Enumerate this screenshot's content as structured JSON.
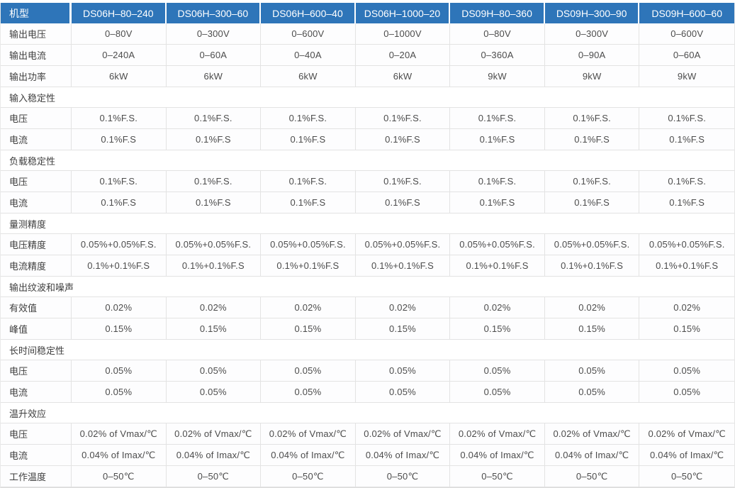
{
  "table": {
    "corner_label": "机型",
    "models": [
      "DS06H–80–240",
      "DS06H–300–60",
      "DS06H–600–40",
      "DS06H–1000–20",
      "DS09H–80–360",
      "DS09H–300–90",
      "DS09H–600–60"
    ],
    "rows": [
      {
        "type": "data",
        "label": "输出电压",
        "values": [
          "0–80V",
          "0–300V",
          "0–600V",
          "0–1000V",
          "0–80V",
          "0–300V",
          "0–600V"
        ]
      },
      {
        "type": "data",
        "label": "输出电流",
        "values": [
          "0–240A",
          "0–60A",
          "0–40A",
          "0–20A",
          "0–360A",
          "0–90A",
          "0–60A"
        ]
      },
      {
        "type": "data",
        "label": "输出功率",
        "values": [
          "6kW",
          "6kW",
          "6kW",
          "6kW",
          "9kW",
          "9kW",
          "9kW"
        ]
      },
      {
        "type": "section",
        "label": "输入稳定性"
      },
      {
        "type": "data",
        "label": "电压",
        "values": [
          "0.1%F.S.",
          "0.1%F.S.",
          "0.1%F.S.",
          "0.1%F.S.",
          "0.1%F.S.",
          "0.1%F.S.",
          "0.1%F.S."
        ]
      },
      {
        "type": "data",
        "label": "电流",
        "values": [
          "0.1%F.S",
          "0.1%F.S",
          "0.1%F.S",
          "0.1%F.S",
          "0.1%F.S",
          "0.1%F.S",
          "0.1%F.S"
        ]
      },
      {
        "type": "section",
        "label": "负载稳定性"
      },
      {
        "type": "data",
        "label": "电压",
        "values": [
          "0.1%F.S.",
          "0.1%F.S.",
          "0.1%F.S.",
          "0.1%F.S.",
          "0.1%F.S.",
          "0.1%F.S.",
          "0.1%F.S."
        ]
      },
      {
        "type": "data",
        "label": "电流",
        "values": [
          "0.1%F.S",
          "0.1%F.S",
          "0.1%F.S",
          "0.1%F.S",
          "0.1%F.S",
          "0.1%F.S",
          "0.1%F.S"
        ]
      },
      {
        "type": "section",
        "label": "量测精度"
      },
      {
        "type": "data",
        "label": "电压精度",
        "values": [
          "0.05%+0.05%F.S.",
          "0.05%+0.05%F.S.",
          "0.05%+0.05%F.S.",
          "0.05%+0.05%F.S.",
          "0.05%+0.05%F.S.",
          "0.05%+0.05%F.S.",
          "0.05%+0.05%F.S."
        ]
      },
      {
        "type": "data",
        "label": "电流精度",
        "values": [
          "0.1%+0.1%F.S",
          "0.1%+0.1%F.S",
          "0.1%+0.1%F.S",
          "0.1%+0.1%F.S",
          "0.1%+0.1%F.S",
          "0.1%+0.1%F.S",
          "0.1%+0.1%F.S"
        ]
      },
      {
        "type": "section",
        "label": "输出纹波和噪声"
      },
      {
        "type": "data",
        "label": "有效值",
        "values": [
          "0.02%",
          "0.02%",
          "0.02%",
          "0.02%",
          "0.02%",
          "0.02%",
          "0.02%"
        ]
      },
      {
        "type": "data",
        "label": "峰值",
        "values": [
          "0.15%",
          "0.15%",
          "0.15%",
          "0.15%",
          "0.15%",
          "0.15%",
          "0.15%"
        ]
      },
      {
        "type": "section",
        "label": "长时间稳定性"
      },
      {
        "type": "data",
        "label": "电压",
        "values": [
          "0.05%",
          "0.05%",
          "0.05%",
          "0.05%",
          "0.05%",
          "0.05%",
          "0.05%"
        ]
      },
      {
        "type": "data",
        "label": "电流",
        "values": [
          "0.05%",
          "0.05%",
          "0.05%",
          "0.05%",
          "0.05%",
          "0.05%",
          "0.05%"
        ]
      },
      {
        "type": "section",
        "label": "温升效应"
      },
      {
        "type": "data",
        "label": "电压",
        "values": [
          "0.02% of Vmax/℃",
          "0.02% of Vmax/℃",
          "0.02% of Vmax/℃",
          "0.02% of Vmax/℃",
          "0.02% of Vmax/℃",
          "0.02% of Vmax/℃",
          "0.02% of Vmax/℃"
        ]
      },
      {
        "type": "data",
        "label": "电流",
        "values": [
          "0.04% of Imax/℃",
          "0.04% of Imax/℃",
          "0.04% of Imax/℃",
          "0.04% of Imax/℃",
          "0.04% of Imax/℃",
          "0.04% of Imax/℃",
          "0.04% of Imax/℃"
        ]
      },
      {
        "type": "data",
        "label": "工作温度",
        "values": [
          "0–50℃",
          "0–50℃",
          "0–50℃",
          "0–50℃",
          "0–50℃",
          "0–50℃",
          "0–50℃"
        ]
      }
    ],
    "colors": {
      "header_bg": "#2e75b9",
      "header_text": "#ffffff",
      "border": "#e3e3e3",
      "label_text": "#3f3f3f",
      "value_text": "#4c4c4c"
    }
  }
}
